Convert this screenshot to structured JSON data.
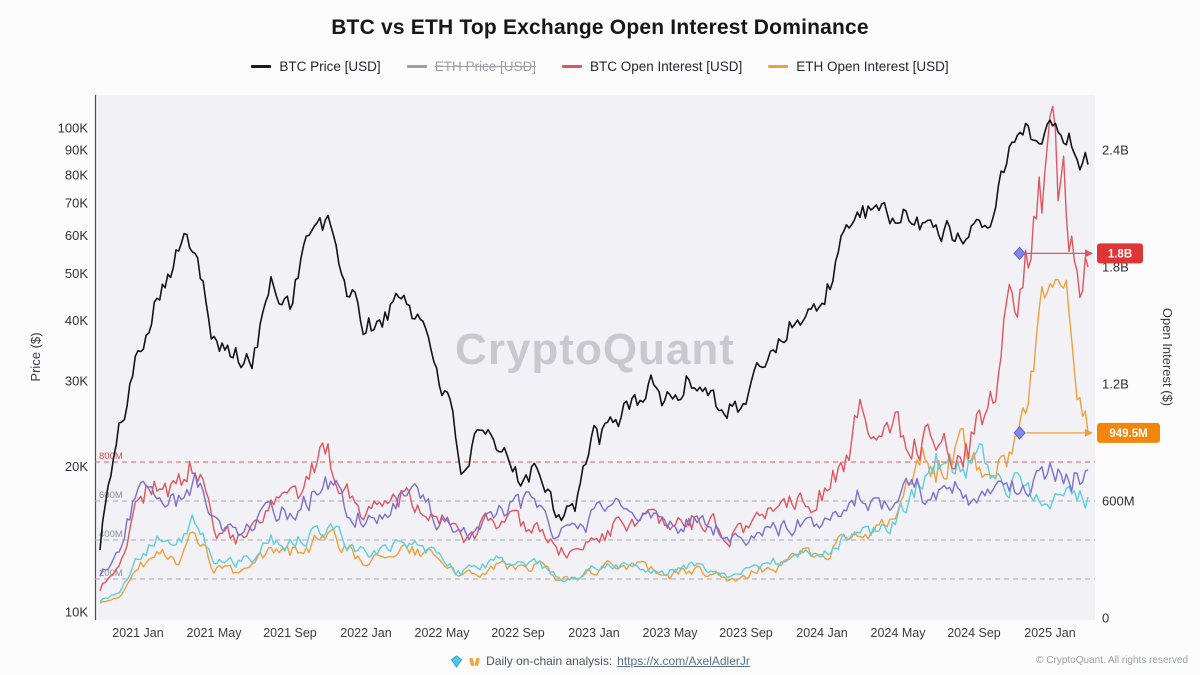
{
  "watermark": "CryptoQuant",
  "legend": {
    "items": [
      {
        "label": "BTC Price [USD]",
        "color": "#1b1b1b",
        "disabled": false
      },
      {
        "label": "ETH Price [USD]",
        "color": "#9aa0a6",
        "disabled": true
      },
      {
        "label": "BTC Open Interest [USD]",
        "color": "#e0565f",
        "disabled": false
      },
      {
        "label": "ETH Open Interest [USD]",
        "color": "#efa03e",
        "disabled": false
      }
    ]
  },
  "footer": {
    "emoji": "💎🙌",
    "label": "Daily on-chain analysis:",
    "link": "https://x.com/AxelAdlerJr",
    "copyright": "© CryptoQuant. All rights reserved"
  },
  "chart_data": {
    "type": "line",
    "title": "BTC vs ETH Top Exchange Open Interest Dominance",
    "x_range": [
      "2020-11",
      "2025-03"
    ],
    "months": [
      "2020-11",
      "2020-12",
      "2021-01",
      "2021-02",
      "2021-03",
      "2021-04",
      "2021-05",
      "2021-06",
      "2021-07",
      "2021-08",
      "2021-09",
      "2021-10",
      "2021-11",
      "2021-12",
      "2022-01",
      "2022-02",
      "2022-03",
      "2022-04",
      "2022-05",
      "2022-06",
      "2022-07",
      "2022-08",
      "2022-09",
      "2022-10",
      "2022-11",
      "2022-12",
      "2023-01",
      "2023-02",
      "2023-03",
      "2023-04",
      "2023-05",
      "2023-06",
      "2023-07",
      "2023-08",
      "2023-09",
      "2023-10",
      "2023-11",
      "2023-12",
      "2024-01",
      "2024-02",
      "2024-03",
      "2024-04",
      "2024-05",
      "2024-06",
      "2024-07",
      "2024-08",
      "2024-09",
      "2024-10",
      "2024-11",
      "2024-12",
      "2025-01",
      "2025-02",
      "2025-03"
    ],
    "left_axis": {
      "label": "Price ($)",
      "scale": "log",
      "ticks": [
        {
          "label": "10K",
          "value": 10000
        },
        {
          "label": "20K",
          "value": 20000
        },
        {
          "label": "30K",
          "value": 30000
        },
        {
          "label": "40K",
          "value": 40000
        },
        {
          "label": "50K",
          "value": 50000
        },
        {
          "label": "60K",
          "value": 60000
        },
        {
          "label": "70K",
          "value": 70000
        },
        {
          "label": "80K",
          "value": 80000
        },
        {
          "label": "90K",
          "value": 90000
        },
        {
          "label": "100K",
          "value": 100000
        }
      ]
    },
    "right_axis": {
      "label": "Open Interest ($)",
      "scale": "linear",
      "unit": "USD",
      "ticks": [
        {
          "label": "0",
          "value_m": 0
        },
        {
          "label": "600M",
          "value_m": 600
        },
        {
          "label": "1.2B",
          "value_m": 1200
        },
        {
          "label": "1.8B",
          "value_m": 1800
        },
        {
          "label": "2.4B",
          "value_m": 2400
        }
      ]
    },
    "x_ticks": [
      {
        "label": "2021 Jan",
        "month_index": 2
      },
      {
        "label": "2021 May",
        "month_index": 6
      },
      {
        "label": "2021 Sep",
        "month_index": 10
      },
      {
        "label": "2022 Jan",
        "month_index": 14
      },
      {
        "label": "2022 May",
        "month_index": 18
      },
      {
        "label": "2022 Sep",
        "month_index": 22
      },
      {
        "label": "2023 Jan",
        "month_index": 26
      },
      {
        "label": "2023 May",
        "month_index": 30
      },
      {
        "label": "2023 Sep",
        "month_index": 34
      },
      {
        "label": "2024 Jan",
        "month_index": 38
      },
      {
        "label": "2024 May",
        "month_index": 42
      },
      {
        "label": "2024 Sep",
        "month_index": 46
      },
      {
        "label": "2025 Jan",
        "month_index": 50
      }
    ],
    "levels": [
      {
        "label": "800M",
        "value_m": 800,
        "color": "#e35d5d",
        "label_color": "#d94b4b"
      },
      {
        "label": "600M",
        "value_m": 600,
        "color": "#a8acb4",
        "label_color": "#8b8f97"
      },
      {
        "label": "400M",
        "value_m": 400,
        "color": "#a8acb4",
        "label_color": "#8b8f97"
      },
      {
        "label": "200M",
        "value_m": 200,
        "color": "#a8acb4",
        "label_color": "#8b8f97"
      }
    ],
    "series": [
      {
        "name": "BTC Price [USD]",
        "color": "#141414",
        "axis": "left",
        "unit": "USD",
        "visible": true,
        "values": [
          14000,
          23000,
          34000,
          46000,
          55000,
          59000,
          37000,
          34000,
          32000,
          47000,
          44000,
          61000,
          62000,
          47000,
          38000,
          41000,
          45000,
          39500,
          30000,
          20000,
          22500,
          21000,
          19500,
          20200,
          16500,
          16800,
          22500,
          23500,
          27500,
          29000,
          27000,
          30200,
          29300,
          26100,
          27000,
          33500,
          37500,
          42500,
          42500,
          56000,
          68500,
          63000,
          67500,
          62000,
          64500,
          59000,
          63500,
          70000,
          93000,
          97000,
          102000,
          97000,
          84000
        ]
      },
      {
        "name": "ETH Price [USD]",
        "color": "#9aa0a6",
        "axis": "left",
        "unit": "USD",
        "visible": false,
        "values": []
      },
      {
        "name": "BTC Open Interest [USD]",
        "color": "#e0565f",
        "axis": "right",
        "unit": "million USD",
        "visible": true,
        "values": [
          150,
          280,
          620,
          700,
          640,
          790,
          460,
          400,
          420,
          560,
          590,
          680,
          850,
          640,
          560,
          610,
          650,
          600,
          500,
          400,
          450,
          500,
          460,
          490,
          340,
          330,
          410,
          460,
          500,
          480,
          450,
          500,
          480,
          430,
          450,
          550,
          600,
          650,
          640,
          800,
          1000,
          900,
          1010,
          900,
          960,
          860,
          920,
          1100,
          1650,
          1950,
          2250,
          2100,
          1800
        ]
      },
      {
        "name": "ETH Open Interest [USD]",
        "color": "#efa03e",
        "axis": "right",
        "unit": "million USD",
        "visible": true,
        "values": [
          70,
          110,
          260,
          330,
          300,
          420,
          260,
          230,
          250,
          340,
          330,
          380,
          420,
          340,
          300,
          330,
          360,
          330,
          280,
          210,
          240,
          270,
          250,
          270,
          190,
          185,
          240,
          270,
          260,
          245,
          225,
          245,
          235,
          210,
          220,
          255,
          290,
          320,
          310,
          390,
          470,
          430,
          600,
          850,
          760,
          880,
          800,
          870,
          900,
          1300,
          1600,
          1500,
          949.5
        ]
      },
      {
        "name": "unlabeled purple series",
        "color": "#7d6fd0",
        "axis": "right",
        "unit": "million USD",
        "visible": true,
        "values": [
          220,
          340,
          680,
          610,
          590,
          700,
          470,
          440,
          460,
          560,
          540,
          620,
          690,
          560,
          520,
          560,
          620,
          580,
          500,
          420,
          480,
          530,
          570,
          610,
          430,
          420,
          520,
          560,
          540,
          500,
          470,
          500,
          480,
          430,
          400,
          430,
          460,
          500,
          480,
          560,
          650,
          570,
          620,
          650,
          600,
          640,
          600,
          620,
          640,
          700,
          760,
          720,
          760
        ]
      },
      {
        "name": "unlabeled teal series",
        "color": "#5ecfdd",
        "axis": "right",
        "unit": "million USD",
        "visible": true,
        "values": [
          90,
          130,
          300,
          420,
          380,
          490,
          300,
          280,
          300,
          400,
          380,
          420,
          450,
          380,
          330,
          350,
          380,
          350,
          300,
          230,
          260,
          290,
          270,
          290,
          210,
          200,
          260,
          290,
          280,
          260,
          240,
          260,
          250,
          220,
          230,
          270,
          300,
          330,
          320,
          400,
          480,
          430,
          520,
          650,
          800,
          740,
          840,
          780,
          700,
          620,
          650,
          600,
          620
        ]
      }
    ],
    "annotations": [
      {
        "label": "1.8B",
        "value_m": 1870,
        "badge_color": "#e03535",
        "line_color": "#e0565f",
        "month_index": 48.4
      },
      {
        "label": "949.5M",
        "value_m": 949.5,
        "badge_color": "#f2860d",
        "line_color": "#efa03e",
        "month_index": 48.4
      }
    ]
  }
}
